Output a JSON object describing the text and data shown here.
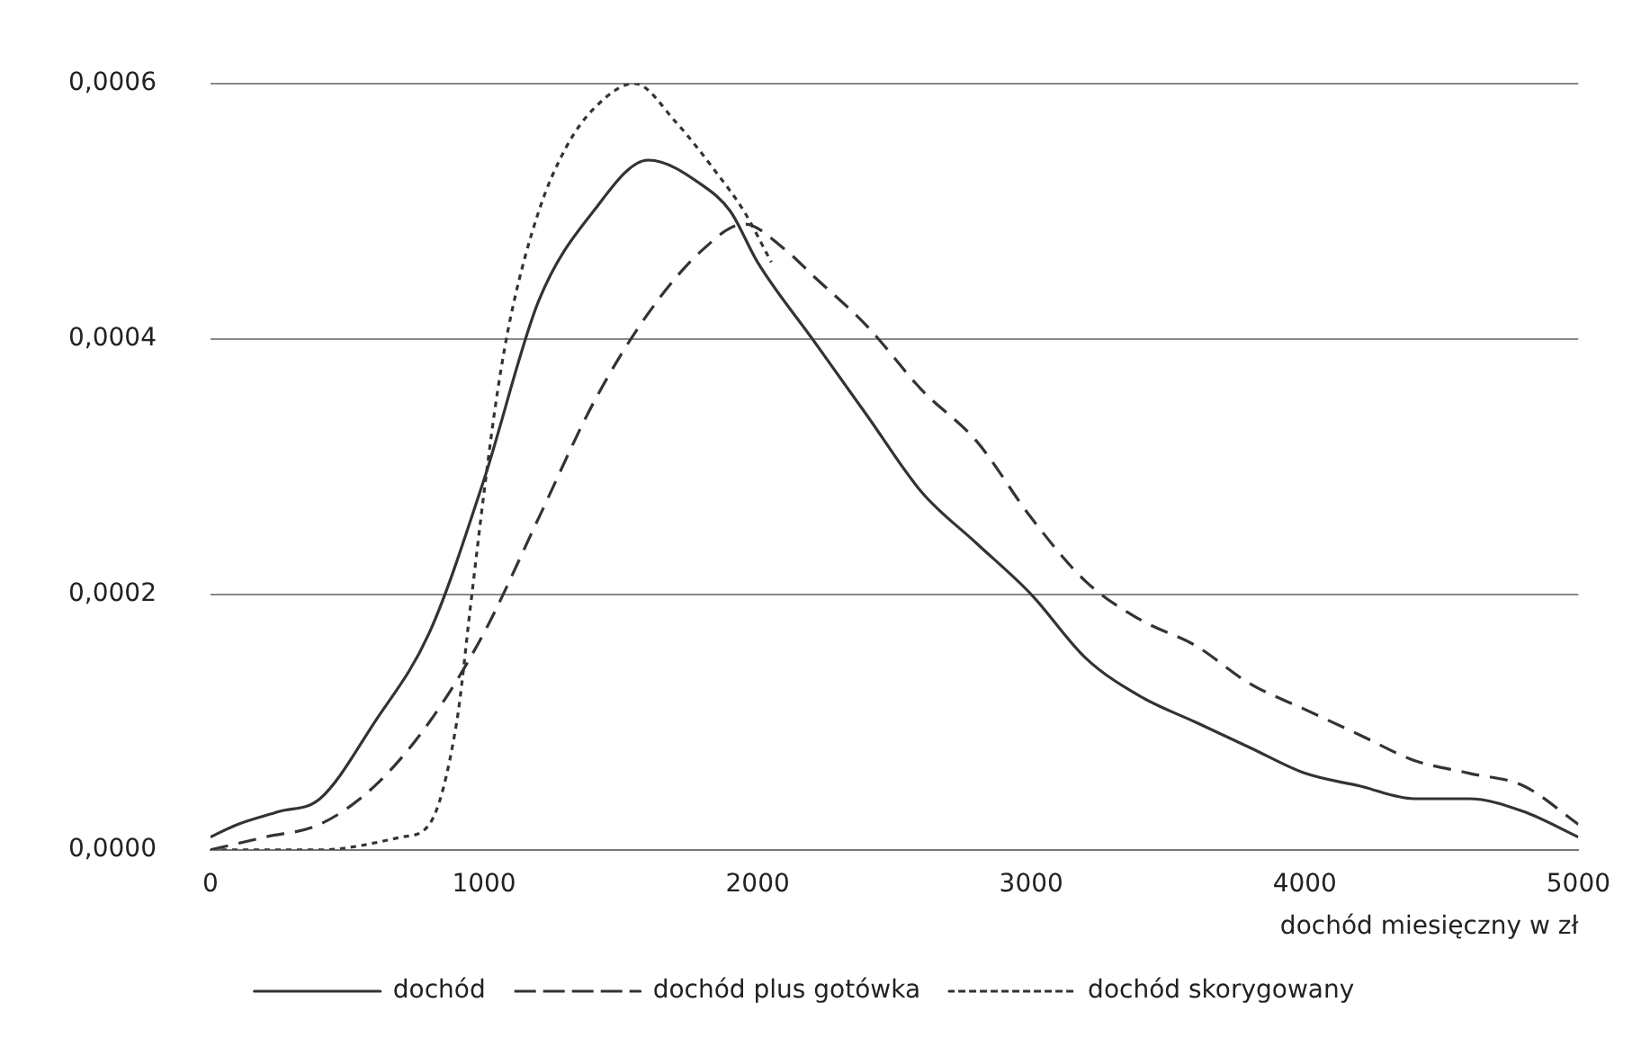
{
  "chart_data": {
    "type": "line",
    "xlabel": "dochód miesięczny w zł",
    "xlim": [
      0,
      5000
    ],
    "xticks": [
      0,
      1000,
      2000,
      3000,
      4000,
      5000
    ],
    "ylim": [
      0,
      0.0006
    ],
    "yticks": [
      {
        "value": 0,
        "label": "0,0000"
      },
      {
        "value": 0.0002,
        "label": "0,0002"
      },
      {
        "value": 0.0004,
        "label": "0,0004"
      },
      {
        "value": 0.0006,
        "label": "0,0006"
      }
    ],
    "grid": "y",
    "legend": "bottom",
    "marker": "none",
    "series": [
      {
        "name": "dochód",
        "color": "#333333",
        "line_style": "solid",
        "x": [
          0,
          100,
          250,
          400,
          600,
          800,
          1000,
          1200,
          1400,
          1600,
          1800,
          1900,
          2000,
          2200,
          2400,
          2600,
          2800,
          3000,
          3200,
          3400,
          3600,
          3800,
          4000,
          4200,
          4400,
          4600,
          4800,
          5000
        ],
        "values": [
          1e-05,
          2e-05,
          3e-05,
          4e-05,
          0.0001,
          0.00017,
          0.00029,
          0.00043,
          0.0005,
          0.00054,
          0.00052,
          0.0005,
          0.00046,
          0.0004,
          0.00034,
          0.00028,
          0.00024,
          0.0002,
          0.00015,
          0.00012,
          0.0001,
          8e-05,
          6e-05,
          5e-05,
          4e-05,
          4e-05,
          3e-05,
          1e-05
        ]
      },
      {
        "name": "dochód plus gotówka",
        "color": "#333333",
        "line_style": "dashed",
        "x": [
          0,
          200,
          400,
          600,
          800,
          1000,
          1200,
          1400,
          1600,
          1800,
          1950,
          2100,
          2200,
          2400,
          2600,
          2800,
          3000,
          3200,
          3400,
          3600,
          3800,
          4000,
          4200,
          4400,
          4600,
          4800,
          5000
        ],
        "values": [
          0,
          1e-05,
          2e-05,
          5e-05,
          0.0001,
          0.00017,
          0.00026,
          0.00035,
          0.00042,
          0.00047,
          0.00049,
          0.00047,
          0.00045,
          0.00041,
          0.00036,
          0.00032,
          0.00026,
          0.00021,
          0.00018,
          0.00016,
          0.00013,
          0.00011,
          9e-05,
          7e-05,
          6e-05,
          5e-05,
          2e-05
        ]
      },
      {
        "name": "dochód skorygowany",
        "color": "#333333",
        "line_style": "dotted",
        "x": [
          0,
          400,
          700,
          800,
          900,
          950,
          1000,
          1050,
          1100,
          1200,
          1300,
          1400,
          1550,
          1700,
          1850,
          1950,
          2050
        ],
        "values": [
          0,
          0,
          1e-05,
          2e-05,
          0.0001,
          0.00019,
          0.00028,
          0.00036,
          0.00042,
          0.0005,
          0.00055,
          0.00058,
          0.0006,
          0.00057,
          0.00053,
          0.0005,
          0.00046
        ]
      }
    ]
  }
}
